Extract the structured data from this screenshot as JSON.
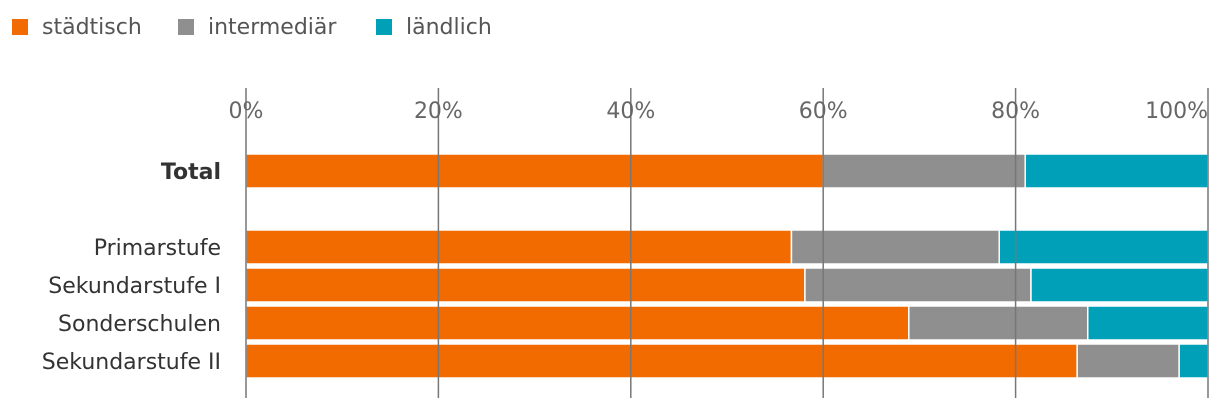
{
  "chart_data": {
    "type": "stacked-bar-horizontal-100",
    "legend": [
      {
        "name": "städtisch",
        "color": "#F26B00"
      },
      {
        "name": "intermediär",
        "color": "#8F8F8F"
      },
      {
        "name": "ländlich",
        "color": "#00A0B8"
      }
    ],
    "x_ticks": [
      "0%",
      "20%",
      "40%",
      "60%",
      "80%",
      "100%"
    ],
    "xlim": [
      0,
      100
    ],
    "rows": [
      {
        "label": "Total",
        "bold": true,
        "values": [
          60,
          21,
          19
        ]
      },
      {
        "label": "Primarstufe",
        "bold": false,
        "values": [
          56.7,
          21.6,
          21.7
        ]
      },
      {
        "label": "Sekundarstufe I",
        "bold": false,
        "values": [
          58.1,
          23.5,
          18.4
        ]
      },
      {
        "label": "Sonderschulen",
        "bold": false,
        "values": [
          68.9,
          18.6,
          12.5
        ]
      },
      {
        "label": "Sekundarstufe II",
        "bold": false,
        "values": [
          86.4,
          10.6,
          3.0
        ]
      }
    ]
  }
}
